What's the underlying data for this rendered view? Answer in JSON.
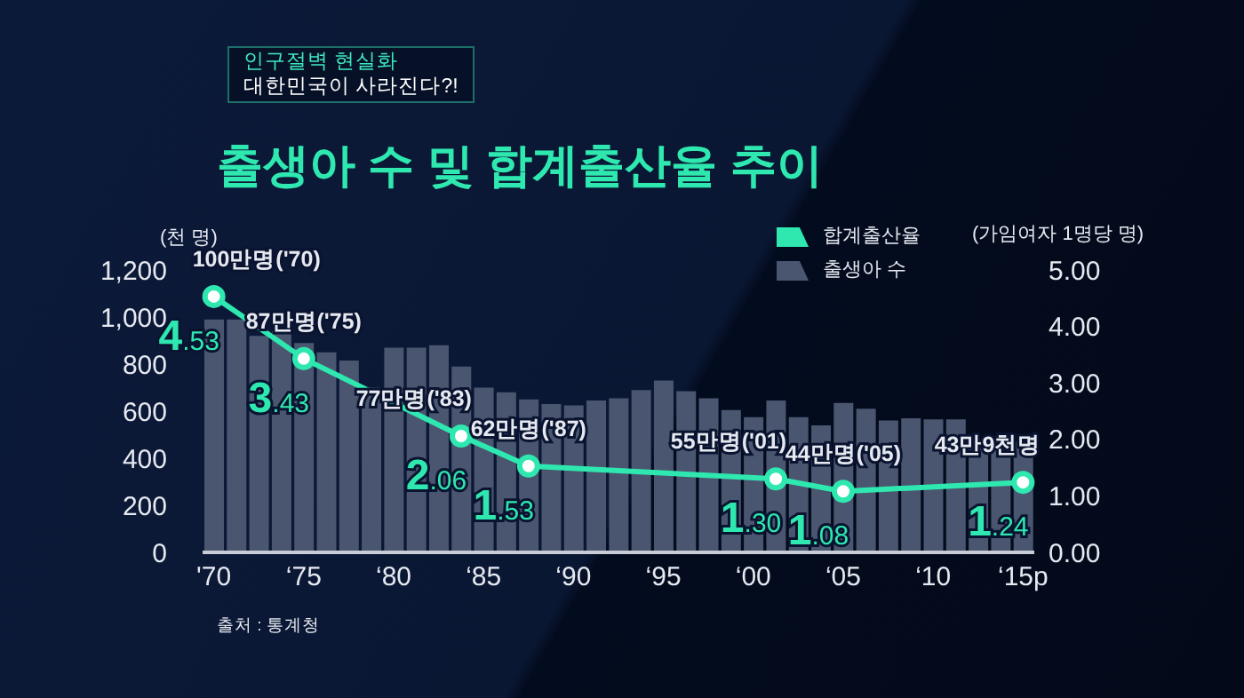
{
  "chart_data": {
    "type": "bar",
    "title": "출생아 수 및 합계출산율 추이",
    "ylabel": "(천 명)",
    "y2label": "(가임여자 1명당 명)",
    "annotations": [
      "인구절벽 현실화",
      "대한민국이 사라진다?!",
      "출처 : 통계청",
      "100만명('70)",
      "87만명('75)",
      "77만명('83)",
      "62만명('87)",
      "55만명('01)",
      "44만명('05)",
      "43만9천명"
    ],
    "categories": [
      "'70",
      null,
      null,
      null,
      "‘75",
      null,
      null,
      null,
      "‘80",
      null,
      null,
      null,
      "‘85",
      null,
      null,
      null,
      "‘90",
      null,
      null,
      null,
      "‘95",
      null,
      null,
      null,
      "‘00",
      null,
      null,
      null,
      "‘05",
      null,
      null,
      null,
      "‘10",
      null,
      null,
      null,
      "‘15p"
    ],
    "series": [
      {
        "name": "합계출산율",
        "type": "line",
        "axis": "y2",
        "color": "#2ee8b0",
        "values": [
          4.53,
          null,
          null,
          null,
          3.43,
          null,
          null,
          null,
          null,
          null,
          null,
          2.06,
          null,
          null,
          1.53,
          null,
          null,
          null,
          null,
          null,
          null,
          null,
          null,
          null,
          null,
          1.3,
          null,
          null,
          1.08,
          null,
          null,
          null,
          null,
          null,
          null,
          null,
          1.24
        ],
        "value_labels": [
          "4.53",
          null,
          null,
          null,
          "3.43",
          null,
          null,
          null,
          null,
          null,
          null,
          "2.06",
          null,
          null,
          "1.53",
          null,
          null,
          null,
          null,
          null,
          null,
          null,
          null,
          null,
          null,
          "1.30",
          null,
          null,
          "1.08",
          null,
          null,
          null,
          null,
          null,
          null,
          null,
          "1.24"
        ]
      },
      {
        "name": "출생아 수",
        "color": "#4a5670",
        "values": [
          990,
          990,
          920,
          940,
          890,
          850,
          815,
          700,
          870,
          870,
          880,
          790,
          700,
          680,
          650,
          630,
          625,
          645,
          655,
          690,
          730,
          685,
          655,
          605,
          575,
          645,
          575,
          540,
          635,
          610,
          560,
          570,
          565,
          565,
          470,
          470,
          470
        ]
      }
    ],
    "ylim": [
      0,
      1200
    ],
    "yticks": [
      0,
      200,
      400,
      600,
      800,
      {
        "value": 1000,
        "label": "1,000"
      },
      {
        "value": 1200,
        "label": "1,200"
      }
    ],
    "y2lim": [
      0,
      5
    ],
    "y2ticks": [
      {
        "value": 0,
        "label": "0.00"
      },
      {
        "value": 1,
        "label": "1.00"
      },
      {
        "value": 2,
        "label": "2.00"
      },
      {
        "value": 3,
        "label": "3.00"
      },
      {
        "value": 4,
        "label": "4.00"
      },
      {
        "value": 5,
        "label": "5.00"
      }
    ],
    "legend": "top right",
    "marker": "circle",
    "grid": false
  }
}
